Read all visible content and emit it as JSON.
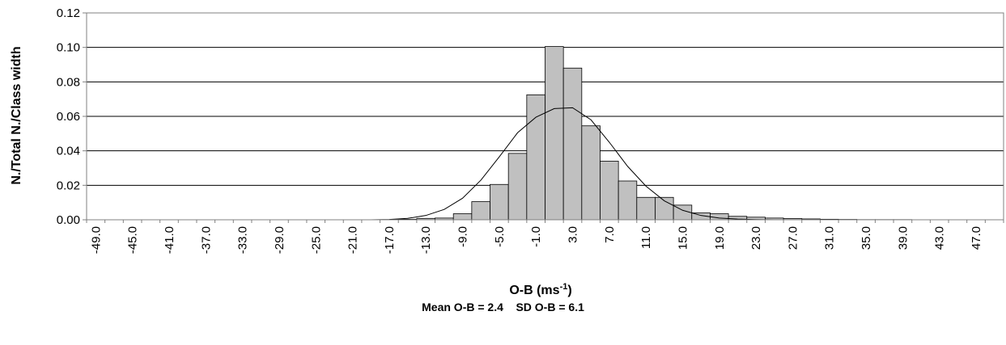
{
  "chart_data": {
    "type": "bar",
    "ylabel": "N./Total N./Class width",
    "xlabel": "O-B (ms",
    "xlabel_sup": "-1",
    "xlabel_close": ")",
    "ylim": [
      0,
      0.12
    ],
    "yticks": [
      "0.00",
      "0.02",
      "0.04",
      "0.06",
      "0.08",
      "0.10",
      "0.12"
    ],
    "grid": true,
    "categories": [
      "-49.0",
      "-47.0",
      "-45.0",
      "-43.0",
      "-41.0",
      "-39.0",
      "-37.0",
      "-35.0",
      "-33.0",
      "-31.0",
      "-29.0",
      "-27.0",
      "-25.0",
      "-23.0",
      "-21.0",
      "-19.0",
      "-17.0",
      "-15.0",
      "-13.0",
      "-11.0",
      "-9.0",
      "-7.0",
      "-5.0",
      "-3.0",
      "-1.0",
      "1.0",
      "3.0",
      "5.0",
      "7.0",
      "9.0",
      "11.0",
      "13.0",
      "15.0",
      "17.0",
      "19.0",
      "21.0",
      "23.0",
      "25.0",
      "27.0",
      "29.0",
      "31.0",
      "33.0",
      "35.0",
      "37.0",
      "39.0",
      "41.0",
      "43.0",
      "45.0",
      "47.0",
      "49.0"
    ],
    "visible_tick_labels": [
      "-49.0",
      "-45.0",
      "-41.0",
      "-37.0",
      "-33.0",
      "-29.0",
      "-25.0",
      "-21.0",
      "-17.0",
      "-13.0",
      "-9.0",
      "-5.0",
      "-1.0",
      "3.0",
      "7.0",
      "11.0",
      "15.0",
      "19.0",
      "23.0",
      "27.0",
      "31.0",
      "35.0",
      "39.0",
      "43.0",
      "47.0"
    ],
    "series": [
      {
        "type": "bar",
        "color": "#c0c0c0",
        "values": [
          0,
          0,
          0,
          0,
          0,
          0,
          0,
          0,
          0,
          0,
          0,
          0,
          0,
          0,
          0,
          0,
          0,
          0.0003,
          0.0008,
          0.001,
          0.0035,
          0.0105,
          0.0205,
          0.0385,
          0.0725,
          0.1005,
          0.088,
          0.0545,
          0.034,
          0.0225,
          0.013,
          0.013,
          0.0085,
          0.004,
          0.0035,
          0.002,
          0.0015,
          0.001,
          0.0007,
          0.0005,
          0.0003,
          0.0002,
          0.0001,
          0.0001,
          0.0001,
          0,
          0,
          0,
          0,
          0
        ]
      },
      {
        "type": "line",
        "color": "#000000",
        "values": [
          0,
          0,
          0,
          0,
          0,
          0,
          0,
          0,
          0,
          0,
          0,
          0,
          0,
          0,
          0,
          0,
          0.0002,
          0.0008,
          0.0025,
          0.006,
          0.0125,
          0.023,
          0.0365,
          0.0505,
          0.0595,
          0.0645,
          0.065,
          0.058,
          0.045,
          0.031,
          0.0195,
          0.011,
          0.0055,
          0.0025,
          0.001,
          0.0004,
          0.0001,
          0,
          0,
          0,
          0,
          0,
          0,
          0,
          0,
          0,
          0,
          0,
          0,
          0
        ]
      }
    ],
    "annotation": {
      "mean_text": "Mean O-B = 2.4",
      "sd_text": "SD O-B = 6.1"
    }
  }
}
